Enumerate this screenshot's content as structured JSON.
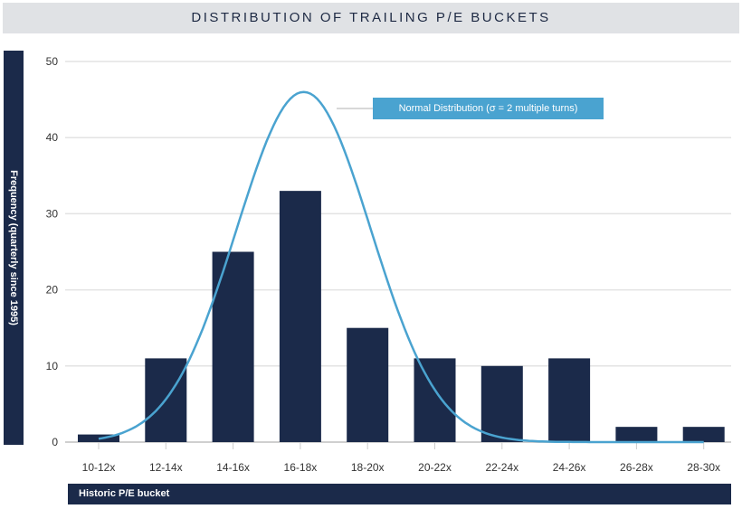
{
  "chart_data": {
    "type": "bar",
    "title": "DISTRIBUTION OF TRAILING P/E BUCKETS",
    "xlabel": "Historic P/E bucket",
    "ylabel": "Frequency (quarterly since 1995)",
    "categories": [
      "10-12x",
      "12-14x",
      "14-16x",
      "16-18x",
      "18-20x",
      "20-22x",
      "22-24x",
      "24-26x",
      "26-28x",
      "28-30x"
    ],
    "values": [
      1,
      11,
      25,
      33,
      15,
      11,
      10,
      11,
      2,
      2
    ],
    "ylim": [
      0,
      50
    ],
    "yticks": [
      0,
      10,
      20,
      30,
      40,
      50
    ],
    "grid": true,
    "overlay": {
      "type": "line",
      "name": "Normal Distribution (σ = 2 multiple turns)",
      "mean": 17.1,
      "sigma": 2,
      "peak": 46,
      "x_range": [
        11,
        29
      ]
    },
    "colors": {
      "bars": "#1b2a4a",
      "curve": "#4aa3d0",
      "grid": "#e3e3e3"
    }
  }
}
